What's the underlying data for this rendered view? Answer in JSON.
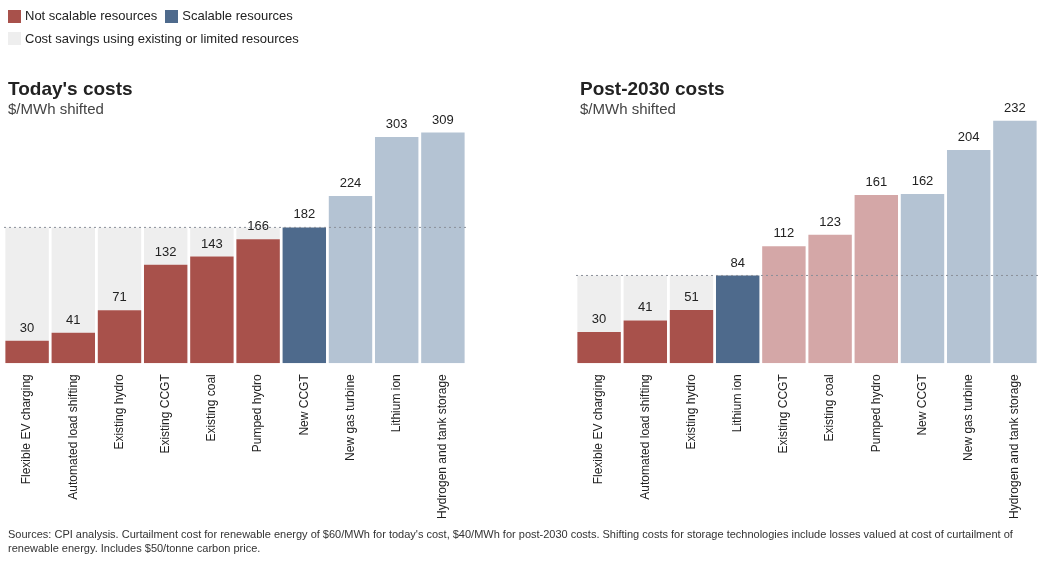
{
  "chart_data": [
    {
      "type": "bar",
      "title": "Today's costs",
      "subtitle": "$/MWh shifted",
      "stacked": true,
      "legend": "top left",
      "categories": [
        "Flexible EV charging",
        "Automated load shifting",
        "Existing hydro",
        "Existing CCGT",
        "Existing coal",
        "Pumped hydro",
        "New CCGT",
        "New gas turbine",
        "Lithium ion",
        "Hydrogen and tank storage"
      ],
      "series": [
        {
          "name": "Not scalable resources",
          "color": "#a8514b",
          "values": [
            30,
            41,
            71,
            132,
            143,
            166,
            null,
            null,
            null,
            null
          ],
          "value_labels": [
            "30",
            "41",
            "71",
            "132",
            "143",
            "166",
            null,
            null,
            null,
            null
          ]
        },
        {
          "name": "Scalable resources",
          "color": "#4e6a8c",
          "values": [
            null,
            null,
            null,
            null,
            null,
            null,
            182,
            null,
            null,
            null
          ],
          "value_labels": [
            null,
            null,
            null,
            null,
            null,
            null,
            "182",
            null,
            null,
            null
          ]
        },
        {
          "color": "#b4c3d3",
          "values": [
            null,
            null,
            null,
            null,
            null,
            null,
            null,
            224,
            303,
            309
          ],
          "value_labels": [
            null,
            null,
            null,
            null,
            null,
            null,
            null,
            "224",
            "303",
            "309"
          ]
        },
        {
          "name": "Cost savings using existing or limited resources",
          "color": "#eeeeee",
          "values": [
            152,
            141,
            111,
            50,
            39,
            16,
            null,
            null,
            null,
            null
          ]
        }
      ],
      "ref_lines": [
        {
          "axis": "y",
          "value": 182,
          "color": "#8a9099",
          "line_style": "dotted"
        }
      ],
      "annotations": [
        "Sources: CPI analysis. Curtailment cost for renewable energy of $60/MWh for today's cost, $40/MWh for post-2030 costs. Shifting costs for storage technologies include losses valued at cost of curtailment of renewable energy. Includes $50/tonne carbon price."
      ]
    },
    {
      "type": "bar",
      "title": "Post-2030 costs",
      "subtitle": "$/MWh shifted",
      "stacked": true,
      "categories": [
        "Flexible EV charging",
        "Automated load shifting",
        "Existing hydro",
        "Lithium ion",
        "Existing CCGT",
        "Existing coal",
        "Pumped hydro",
        "New CCGT",
        "New gas turbine",
        "Hydrogen and tank storage"
      ],
      "series": [
        {
          "color": "#a8514b",
          "values": [
            30,
            41,
            51,
            null,
            null,
            null,
            null,
            null,
            null,
            null
          ],
          "value_labels": [
            "30",
            "41",
            "51",
            null,
            null,
            null,
            null,
            null,
            null,
            null
          ]
        },
        {
          "color": "#4e6a8c",
          "values": [
            null,
            null,
            null,
            84,
            null,
            null,
            null,
            null,
            null,
            null
          ],
          "value_labels": [
            null,
            null,
            null,
            "84",
            null,
            null,
            null,
            null,
            null,
            null
          ]
        },
        {
          "color": "#d4a7a7",
          "values": [
            null,
            null,
            null,
            null,
            112,
            123,
            161,
            null,
            null,
            null
          ],
          "value_labels": [
            null,
            null,
            null,
            null,
            "112",
            "123",
            "161",
            null,
            null,
            null
          ]
        },
        {
          "color": "#b4c3d3",
          "values": [
            null,
            null,
            null,
            null,
            null,
            null,
            null,
            162,
            204,
            232
          ],
          "value_labels": [
            null,
            null,
            null,
            null,
            null,
            null,
            null,
            "162",
            "204",
            "232"
          ]
        },
        {
          "color": "#eeeeee",
          "values": [
            54,
            43,
            33,
            null,
            null,
            null,
            null,
            null,
            null,
            null
          ]
        }
      ],
      "ref_lines": [
        {
          "axis": "y",
          "value": 84,
          "color": "#8a9099",
          "line_style": "dotted"
        }
      ]
    }
  ]
}
